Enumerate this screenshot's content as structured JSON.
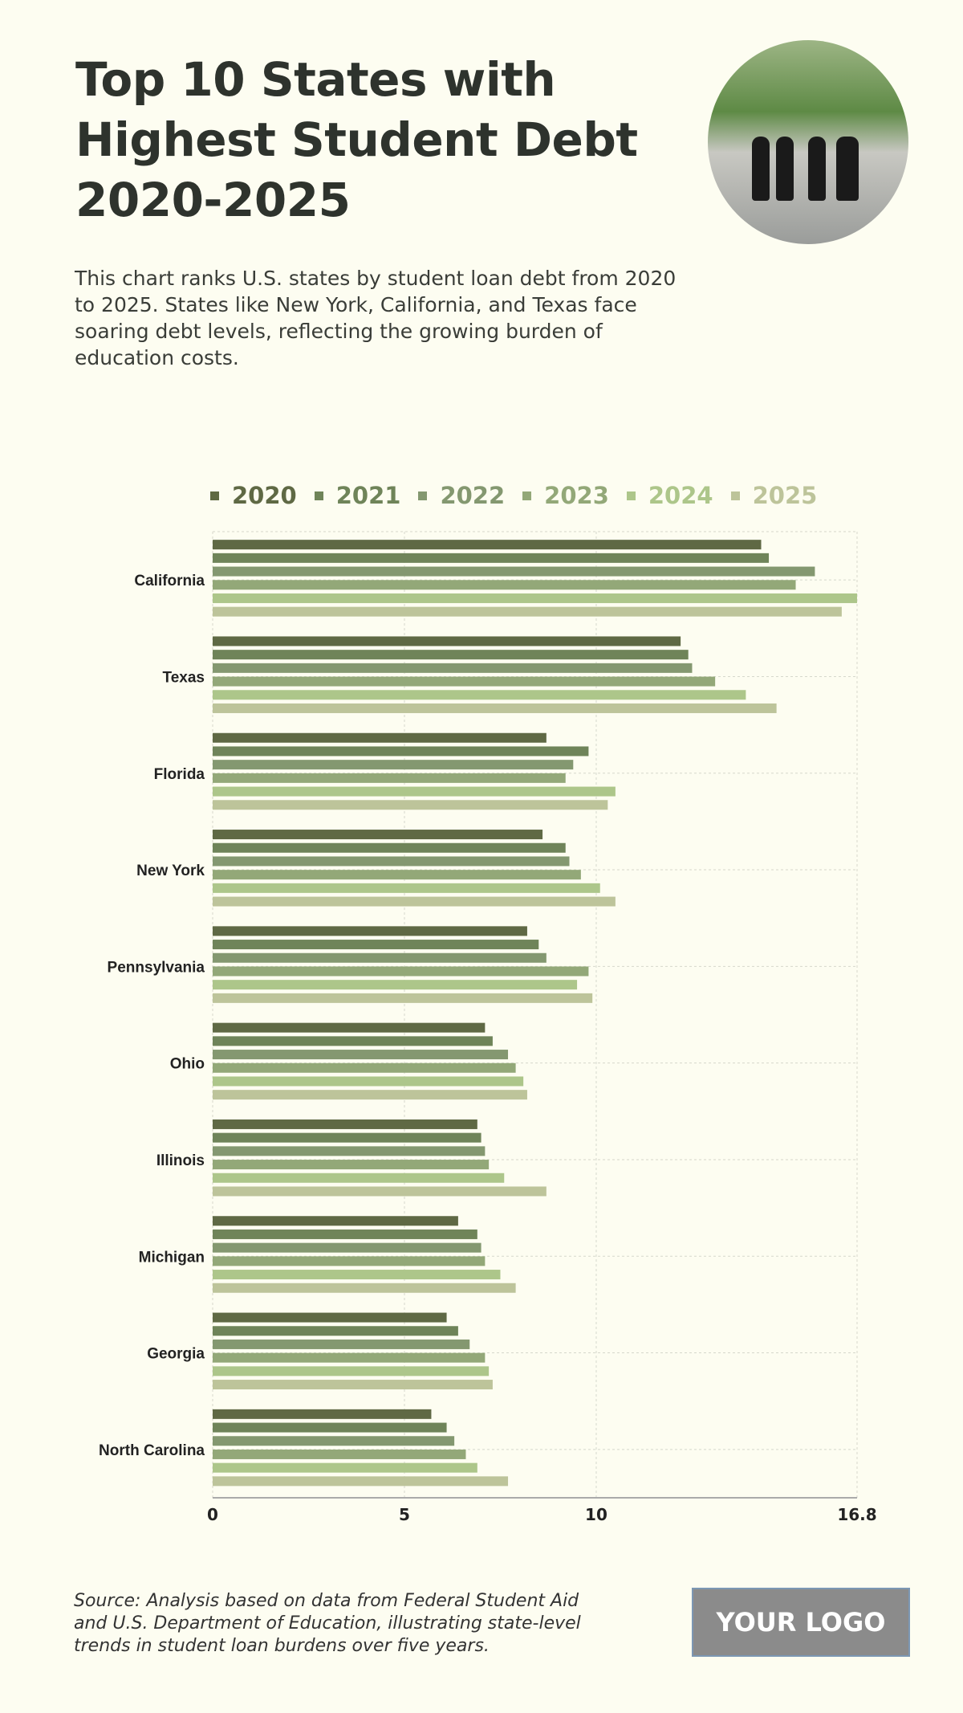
{
  "header": {
    "title": "Top 10 States with Highest Student Debt 2020-2025",
    "description": "This chart ranks U.S. states by student loan debt from 2020 to 2025. States like New York, California, and Texas face soaring debt levels, reflecting the growing burden of education costs."
  },
  "footer": {
    "source": "Source: Analysis based on data from Federal Student Aid and U.S. Department of Education, illustrating state-level trends in student loan burdens over five years.",
    "logo": "YOUR LOGO"
  },
  "chart_data": {
    "type": "bar",
    "orientation": "horizontal",
    "categories": [
      "California",
      "Texas",
      "Florida",
      "New York",
      "Pennsylvania",
      "Ohio",
      "Illinois",
      "Michigan",
      "Georgia",
      "North Carolina"
    ],
    "series": [
      {
        "name": "2020",
        "color": "#5f6944",
        "values": [
          14.3,
          12.2,
          8.7,
          8.6,
          8.2,
          7.1,
          6.9,
          6.4,
          6.1,
          5.7
        ]
      },
      {
        "name": "2021",
        "color": "#6f8459",
        "values": [
          14.5,
          12.4,
          9.8,
          9.2,
          8.5,
          7.3,
          7.0,
          6.9,
          6.4,
          6.1
        ]
      },
      {
        "name": "2022",
        "color": "#849870",
        "values": [
          15.7,
          12.5,
          9.4,
          9.3,
          8.7,
          7.7,
          7.1,
          7.0,
          6.7,
          6.3
        ]
      },
      {
        "name": "2023",
        "color": "#93a878",
        "values": [
          15.2,
          13.1,
          9.2,
          9.6,
          9.8,
          7.9,
          7.2,
          7.1,
          7.1,
          6.6
        ]
      },
      {
        "name": "2024",
        "color": "#adc68a",
        "values": [
          16.8,
          13.9,
          10.5,
          10.1,
          9.5,
          8.1,
          7.6,
          7.5,
          7.2,
          6.9
        ]
      },
      {
        "name": "2025",
        "color": "#bdc49a",
        "values": [
          16.4,
          14.7,
          10.3,
          10.5,
          9.9,
          8.2,
          8.7,
          7.9,
          7.3,
          7.7
        ]
      }
    ],
    "xlim": [
      0,
      16.8
    ],
    "xticks": [
      "0",
      "5",
      "10",
      "16.8"
    ],
    "grid": true,
    "legend": "top"
  }
}
